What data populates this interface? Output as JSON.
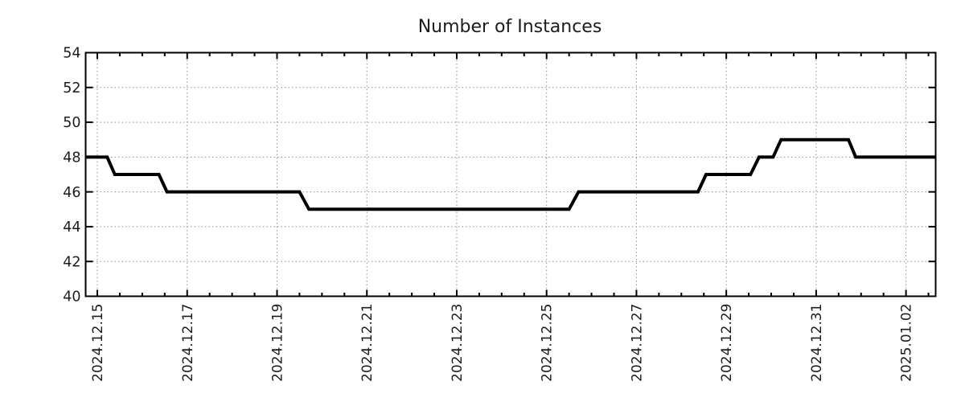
{
  "chart_data": {
    "type": "line",
    "title": "Number of Instances",
    "xlabel": "",
    "ylabel": "",
    "legend": "none",
    "grid": "dotted gray at major ticks",
    "line_style": "solid black step-like line, no markers",
    "x_axis": {
      "tick_labels": [
        "2024.12.15",
        "2024.12.17",
        "2024.12.19",
        "2024.12.21",
        "2024.12.23",
        "2024.12.25",
        "2024.12.27",
        "2024.12.29",
        "2024.12.31",
        "2025.01.02"
      ],
      "tick_positions_days": [
        0,
        2,
        4,
        6,
        8,
        10,
        12,
        14,
        16,
        18
      ],
      "minor_tick_interval_days": 0.5,
      "range_days": [
        -0.26,
        18.66
      ],
      "label_rotation_deg": -90
    },
    "y_axis": {
      "ticks": [
        40,
        42,
        44,
        46,
        48,
        50,
        52,
        54
      ],
      "range": [
        40,
        54
      ]
    },
    "series": [
      {
        "name": "Number of Instances",
        "color": "#000000",
        "points_days_value": [
          [
            -0.26,
            48
          ],
          [
            0.22,
            48
          ],
          [
            0.39,
            47
          ],
          [
            1.37,
            47
          ],
          [
            1.55,
            46
          ],
          [
            4.5,
            46
          ],
          [
            4.71,
            45
          ],
          [
            10.5,
            45
          ],
          [
            10.71,
            46
          ],
          [
            13.37,
            46
          ],
          [
            13.55,
            47
          ],
          [
            14.54,
            47
          ],
          [
            14.73,
            48
          ],
          [
            15.04,
            48
          ],
          [
            15.22,
            49
          ],
          [
            16.72,
            49
          ],
          [
            16.88,
            48
          ],
          [
            18.66,
            48
          ]
        ],
        "steps_readable": [
          {
            "from": "start (2024.12.14 ~18:00)",
            "value": 48
          },
          {
            "at": "2024.12.15 ~07:00",
            "value": 47
          },
          {
            "at": "2024.12.16 ~11:00",
            "value": 46
          },
          {
            "at": "2024.12.19 ~14:00",
            "value": 45
          },
          {
            "at": "2024.12.25 ~14:00",
            "value": 46
          },
          {
            "at": "2024.12.28 ~11:00",
            "value": 47
          },
          {
            "at": "2024.12.29 ~15:00",
            "value": 48
          },
          {
            "at": "2024.12.30 ~02:00",
            "value": 49
          },
          {
            "at": "2024.12.31 ~19:00",
            "value": 48
          },
          {
            "to": "end (2025.01.02 ~16:00)",
            "value": 48
          }
        ]
      }
    ],
    "colors": {
      "line": "#000000",
      "grid": "#8f8f8f",
      "axis": "#000000",
      "text": "#1c1c1c",
      "background": "#ffffff"
    }
  }
}
